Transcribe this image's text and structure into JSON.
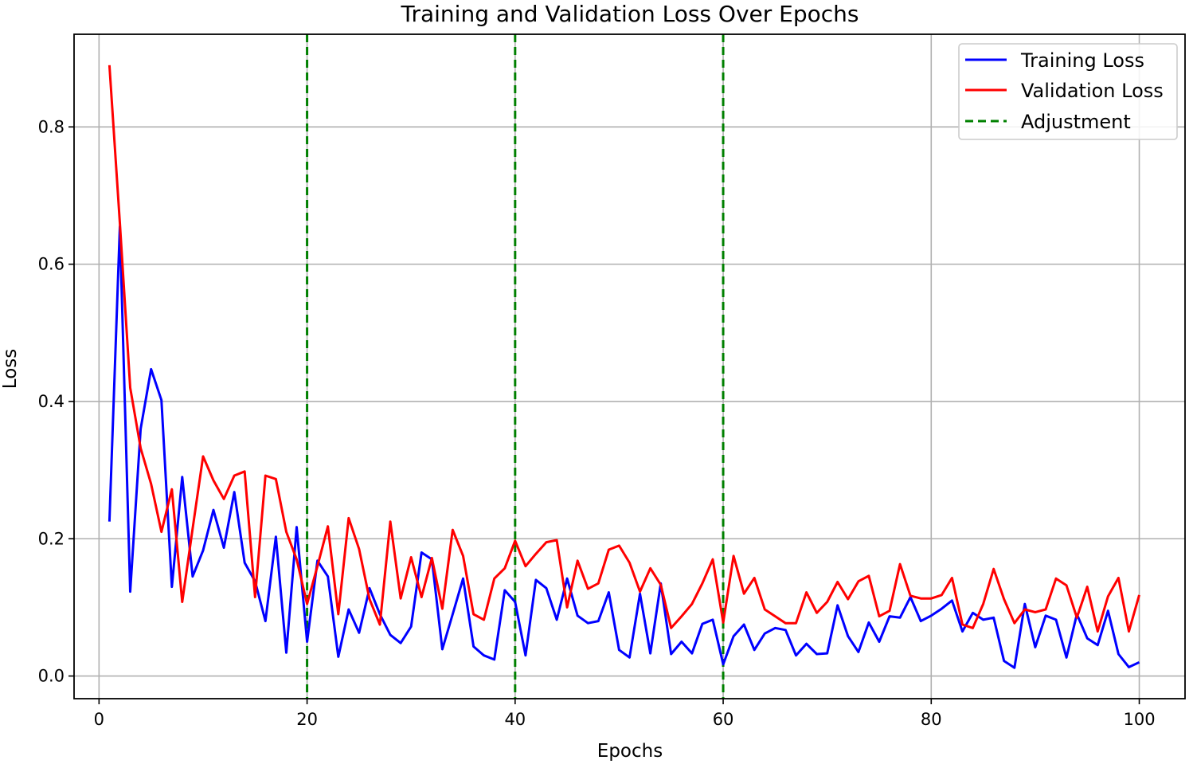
{
  "chart_data": {
    "type": "line",
    "title": "Training and Validation Loss Over Epochs",
    "xlabel": "Epochs",
    "ylabel": "Loss",
    "xlim": [
      -2.4,
      104.4
    ],
    "ylim": [
      -0.033,
      0.935
    ],
    "xticks": [
      0,
      20,
      40,
      60,
      80,
      100
    ],
    "yticks": [
      0.0,
      0.2,
      0.4,
      0.6,
      0.8
    ],
    "xtick_labels": [
      "0",
      "20",
      "40",
      "60",
      "80",
      "100"
    ],
    "ytick_labels": [
      "0.0",
      "0.2",
      "0.4",
      "0.6",
      "0.8"
    ],
    "grid": true,
    "legend_position": "top-right",
    "x": [
      1,
      2,
      3,
      4,
      5,
      6,
      7,
      8,
      9,
      10,
      11,
      12,
      13,
      14,
      15,
      16,
      17,
      18,
      19,
      20,
      21,
      22,
      23,
      24,
      25,
      26,
      27,
      28,
      29,
      30,
      31,
      32,
      33,
      34,
      35,
      36,
      37,
      38,
      39,
      40,
      41,
      42,
      43,
      44,
      45,
      46,
      47,
      48,
      49,
      50,
      51,
      52,
      53,
      54,
      55,
      56,
      57,
      58,
      59,
      60,
      61,
      62,
      63,
      64,
      65,
      66,
      67,
      68,
      69,
      70,
      71,
      72,
      73,
      74,
      75,
      76,
      77,
      78,
      79,
      80,
      81,
      82,
      83,
      84,
      85,
      86,
      87,
      88,
      89,
      90,
      91,
      92,
      93,
      94,
      95,
      96,
      97,
      98,
      99,
      100
    ],
    "series": [
      {
        "name": "Training Loss",
        "color": "#0000ff",
        "style": "solid",
        "values": [
          0.225,
          0.655,
          0.123,
          0.36,
          0.447,
          0.402,
          0.13,
          0.29,
          0.145,
          0.183,
          0.242,
          0.187,
          0.268,
          0.165,
          0.138,
          0.08,
          0.203,
          0.034,
          0.217,
          0.05,
          0.168,
          0.145,
          0.028,
          0.097,
          0.063,
          0.128,
          0.09,
          0.06,
          0.048,
          0.072,
          0.18,
          0.17,
          0.039,
          0.09,
          0.142,
          0.043,
          0.03,
          0.024,
          0.125,
          0.108,
          0.03,
          0.14,
          0.128,
          0.082,
          0.142,
          0.088,
          0.077,
          0.08,
          0.122,
          0.038,
          0.027,
          0.12,
          0.033,
          0.135,
          0.032,
          0.05,
          0.033,
          0.076,
          0.082,
          0.017,
          0.058,
          0.075,
          0.038,
          0.062,
          0.07,
          0.067,
          0.03,
          0.047,
          0.032,
          0.033,
          0.103,
          0.058,
          0.035,
          0.078,
          0.05,
          0.087,
          0.085,
          0.115,
          0.08,
          0.088,
          0.098,
          0.11,
          0.065,
          0.092,
          0.082,
          0.085,
          0.022,
          0.012,
          0.105,
          0.042,
          0.088,
          0.082,
          0.027,
          0.09,
          0.055,
          0.045,
          0.095,
          0.032,
          0.013,
          0.02
        ]
      },
      {
        "name": "Validation Loss",
        "color": "#ff0000",
        "style": "solid",
        "values": [
          0.89,
          0.66,
          0.42,
          0.332,
          0.28,
          0.21,
          0.272,
          0.108,
          0.215,
          0.32,
          0.285,
          0.258,
          0.292,
          0.298,
          0.115,
          0.292,
          0.287,
          0.21,
          0.17,
          0.105,
          0.16,
          0.218,
          0.09,
          0.23,
          0.185,
          0.112,
          0.075,
          0.225,
          0.113,
          0.173,
          0.115,
          0.172,
          0.098,
          0.213,
          0.175,
          0.09,
          0.082,
          0.142,
          0.157,
          0.197,
          0.16,
          0.178,
          0.195,
          0.198,
          0.1,
          0.168,
          0.127,
          0.135,
          0.184,
          0.19,
          0.165,
          0.123,
          0.157,
          0.133,
          0.07,
          0.087,
          0.105,
          0.135,
          0.17,
          0.078,
          0.175,
          0.12,
          0.143,
          0.097,
          0.087,
          0.077,
          0.077,
          0.122,
          0.092,
          0.108,
          0.137,
          0.112,
          0.138,
          0.146,
          0.087,
          0.095,
          0.163,
          0.117,
          0.113,
          0.113,
          0.118,
          0.143,
          0.075,
          0.07,
          0.105,
          0.156,
          0.112,
          0.077,
          0.097,
          0.093,
          0.097,
          0.142,
          0.132,
          0.085,
          0.13,
          0.065,
          0.116,
          0.143,
          0.065,
          0.118
        ]
      }
    ],
    "vlines": {
      "name": "Adjustment",
      "color": "#008000",
      "style": "dashed",
      "x": [
        20,
        40,
        60
      ]
    }
  }
}
